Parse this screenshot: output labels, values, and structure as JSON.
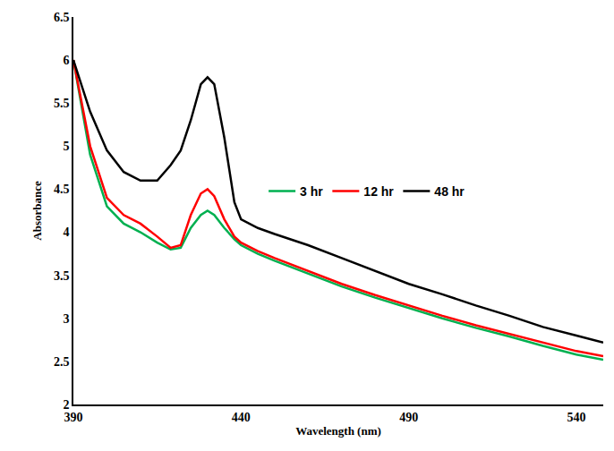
{
  "chart_data": {
    "type": "line",
    "x_label": "Wavelength (nm)",
    "y_label": "Absorbance",
    "x": [
      390,
      395,
      400,
      405,
      410,
      415,
      419,
      422,
      425,
      428,
      430,
      432,
      435,
      438,
      440,
      445,
      450,
      460,
      470,
      480,
      490,
      500,
      510,
      520,
      530,
      540,
      548
    ],
    "series": [
      {
        "name": "3 hr",
        "color": "#00b050",
        "values": [
          6.0,
          4.9,
          4.3,
          4.1,
          4.0,
          3.88,
          3.8,
          3.82,
          4.05,
          4.2,
          4.25,
          4.2,
          4.05,
          3.92,
          3.85,
          3.75,
          3.67,
          3.52,
          3.37,
          3.24,
          3.12,
          3.0,
          2.89,
          2.79,
          2.68,
          2.58,
          2.52
        ]
      },
      {
        "name": "12 hr",
        "color": "#ff0000",
        "values": [
          6.0,
          5.0,
          4.4,
          4.2,
          4.1,
          3.95,
          3.82,
          3.85,
          4.2,
          4.45,
          4.5,
          4.42,
          4.15,
          3.95,
          3.88,
          3.78,
          3.7,
          3.55,
          3.4,
          3.27,
          3.15,
          3.03,
          2.92,
          2.82,
          2.72,
          2.62,
          2.56
        ]
      },
      {
        "name": "48 hr",
        "color": "#000000",
        "values": [
          6.0,
          5.4,
          4.95,
          4.7,
          4.6,
          4.6,
          4.78,
          4.95,
          5.3,
          5.72,
          5.8,
          5.72,
          5.1,
          4.35,
          4.15,
          4.05,
          3.98,
          3.85,
          3.7,
          3.55,
          3.4,
          3.28,
          3.15,
          3.03,
          2.9,
          2.8,
          2.72
        ]
      }
    ],
    "xlim": [
      390,
      548
    ],
    "xticks": [
      390,
      440,
      490,
      540
    ],
    "ylim": [
      2,
      6.5
    ],
    "yticks": [
      2,
      2.5,
      3,
      3.5,
      4,
      4.5,
      5,
      5.5,
      6,
      6.5
    ],
    "grid": false,
    "legend": "center"
  }
}
